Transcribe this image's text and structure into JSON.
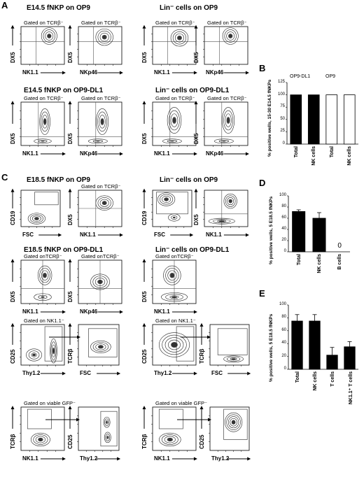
{
  "panels": {
    "A": {
      "letter": "A",
      "titles": [
        "E14.5 fNKP on OP9",
        "Lin⁻ cells on OP9",
        "E14.5 fNKP on OP9-DL1",
        "Lin⁻ cells on OP9-DL1"
      ],
      "gate": "Gated on TCRβ⁻"
    },
    "B": {
      "letter": "B"
    },
    "C": {
      "letter": "C",
      "titles": [
        "E18.5 fNKP on OP9",
        "Lin⁻ cells on OP9",
        "E18.5 fNKP on OP9-DL1",
        "Lin⁻ cells on OP9-DL1"
      ],
      "gate1": "Gated on TCRβ⁻",
      "gate2": "Gated onTCRβ⁻",
      "gate3": "Gated on NK1.1⁻",
      "gate4": "Gated on viable GFP⁻"
    },
    "D": {
      "letter": "D"
    },
    "E": {
      "letter": "E"
    }
  },
  "axes": {
    "dx5": "DX5",
    "nk11": "NK1.1",
    "nkp46": "NKp46",
    "cd19": "CD19",
    "fsc": "FSC",
    "cd25": "CD25",
    "thy12": "Thy1.2",
    "tcrb": "TCRβ"
  },
  "chart_data": [
    {
      "id": "B",
      "type": "bar",
      "ylabel": "% positive wells, 15-30 E14.5 fNKPs",
      "categories": [
        "Total",
        "NK cells",
        "Total",
        "NK cells"
      ],
      "groups": [
        "OP9-DL1",
        "OP9"
      ],
      "values": [
        100,
        100,
        100,
        100
      ],
      "fill": [
        "#000000",
        "#000000",
        "#ffffff",
        "#ffffff"
      ],
      "ylim": [
        0,
        125
      ],
      "yticks": [
        0,
        25,
        50,
        75,
        100,
        125
      ]
    },
    {
      "id": "D",
      "type": "bar",
      "ylabel": "% positive wells, 5 E18.5 fNKPs",
      "categories": [
        "Total",
        "NK cells",
        "B cells"
      ],
      "values": [
        72,
        60,
        0
      ],
      "errors": [
        3,
        10,
        0
      ],
      "annotation": "0",
      "ylim": [
        0,
        100
      ],
      "yticks": [
        0,
        20,
        40,
        60,
        80,
        100
      ]
    },
    {
      "id": "E",
      "type": "bar",
      "ylabel": "% positive wells, 5 E18.5 fNKPs",
      "categories": [
        "Total",
        "NK cells",
        "T cells",
        "NK1.1⁺ T cells"
      ],
      "values": [
        75,
        75,
        22,
        35
      ],
      "errors": [
        10,
        10,
        12,
        8
      ],
      "ylim": [
        0,
        100
      ],
      "yticks": [
        0,
        20,
        40,
        60,
        80,
        100
      ]
    }
  ]
}
